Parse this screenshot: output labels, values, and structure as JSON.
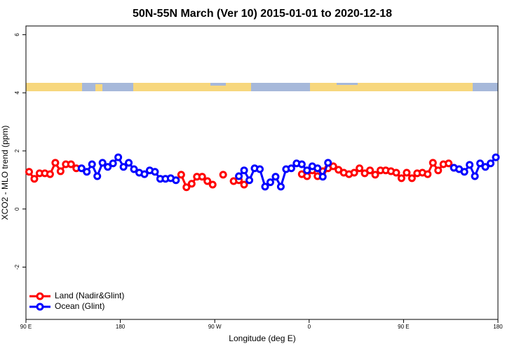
{
  "chart_data": {
    "type": "line",
    "title": "50N-55N March (Ver 10)   2015-01-01 to 2020-12-18",
    "x_label": "Longitude (deg E)",
    "y_label": "XCO2 - MLO trend (ppm)",
    "xlim": [
      90,
      540
    ],
    "xticks": [
      {
        "value": 90,
        "label": "90 E"
      },
      {
        "value": 180,
        "label": "180"
      },
      {
        "value": 270,
        "label": "90 W"
      },
      {
        "value": 360,
        "label": "0"
      },
      {
        "value": 450,
        "label": "90 E"
      },
      {
        "value": 540,
        "label": "180"
      }
    ],
    "ylim": [
      -3.8,
      6.3
    ],
    "yticks": [
      -2,
      0,
      2,
      4,
      6
    ],
    "legend": "bottom-left",
    "x": [
      93,
      98,
      103,
      108,
      113,
      118,
      123,
      128,
      133,
      138,
      143,
      148,
      153,
      158,
      163,
      168,
      173,
      178,
      183,
      188,
      193,
      198,
      203,
      208,
      213,
      218,
      223,
      228,
      233,
      238,
      243,
      248,
      253,
      258,
      263,
      268,
      273,
      278,
      283,
      288,
      293,
      298,
      303,
      308,
      313,
      318,
      323,
      328,
      333,
      338,
      343,
      348,
      353,
      358,
      363,
      368,
      373,
      378,
      383,
      388,
      393,
      398,
      403,
      408,
      413,
      418,
      423,
      428,
      433,
      438,
      443,
      448,
      453,
      458,
      463,
      468,
      473,
      478,
      483,
      488,
      493,
      498,
      503,
      508,
      513,
      518,
      523,
      528,
      533,
      538
    ],
    "series": [
      {
        "name": "Land (Nadir&Glint)",
        "color": "#ff0000",
        "values": [
          1.28,
          1.04,
          1.23,
          1.23,
          1.2,
          1.59,
          1.3,
          1.54,
          1.54,
          1.4,
          null,
          null,
          null,
          null,
          null,
          null,
          null,
          null,
          null,
          null,
          null,
          null,
          null,
          null,
          null,
          null,
          null,
          null,
          null,
          1.18,
          0.75,
          0.87,
          1.11,
          1.11,
          0.96,
          0.84,
          null,
          1.18,
          null,
          0.96,
          0.99,
          0.84,
          null,
          null,
          null,
          null,
          null,
          null,
          null,
          null,
          null,
          null,
          1.2,
          1.13,
          1.33,
          1.13,
          1.3,
          1.4,
          1.47,
          1.35,
          1.25,
          1.2,
          1.25,
          1.4,
          1.23,
          1.33,
          1.18,
          1.33,
          1.33,
          1.3,
          1.25,
          1.06,
          1.25,
          1.06,
          1.23,
          1.25,
          1.2,
          1.59,
          1.33,
          1.54,
          1.57,
          1.42,
          null,
          null,
          null,
          null,
          null,
          null,
          null,
          null
        ]
      },
      {
        "name": "Ocean (Glint)",
        "color": "#0000ff",
        "values": [
          null,
          null,
          null,
          null,
          null,
          null,
          null,
          null,
          null,
          null,
          1.4,
          1.28,
          1.54,
          1.13,
          1.59,
          1.45,
          1.57,
          1.78,
          1.45,
          1.59,
          1.37,
          1.25,
          1.2,
          1.33,
          1.28,
          1.04,
          1.04,
          1.06,
          0.99,
          null,
          null,
          null,
          null,
          null,
          null,
          null,
          null,
          null,
          null,
          null,
          1.13,
          1.33,
          0.99,
          1.4,
          1.37,
          0.77,
          0.92,
          1.11,
          0.77,
          1.37,
          1.4,
          1.57,
          1.54,
          1.33,
          1.47,
          1.4,
          1.11,
          1.59,
          null,
          null,
          null,
          null,
          null,
          null,
          null,
          null,
          null,
          null,
          null,
          null,
          null,
          null,
          null,
          null,
          null,
          null,
          null,
          null,
          null,
          null,
          null,
          1.42,
          1.37,
          1.28,
          1.52,
          1.13,
          1.57,
          1.45,
          1.57,
          1.78
        ]
      }
    ]
  }
}
